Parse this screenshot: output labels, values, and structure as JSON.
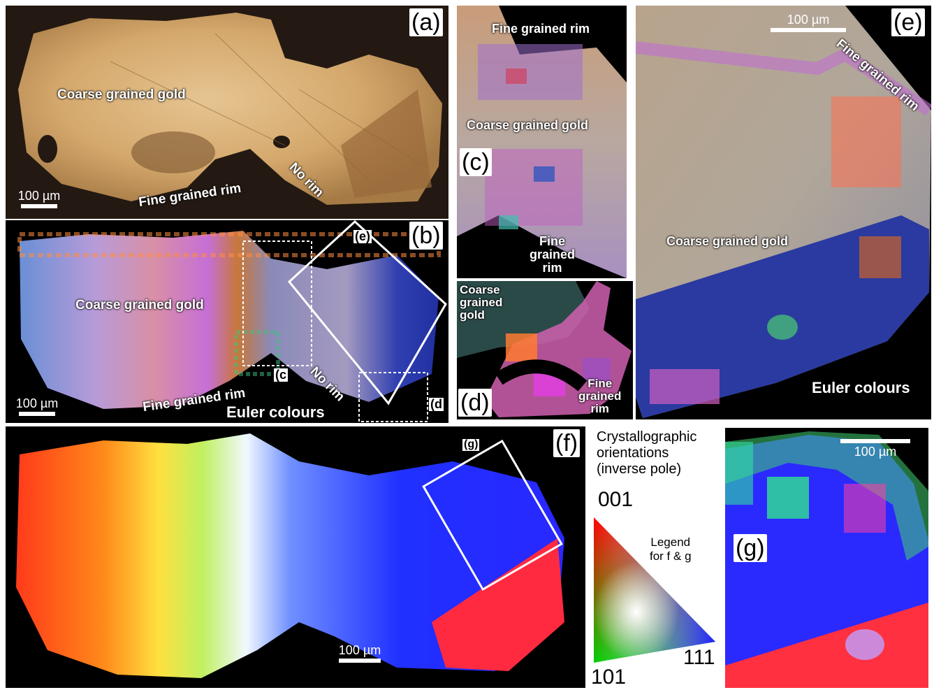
{
  "panels": {
    "a": {
      "tag": "(a)",
      "labels": {
        "coarse": "Coarse  grained gold",
        "rim": "Fine  grained rim",
        "norim": "No rim"
      },
      "scale": "100 µm"
    },
    "b": {
      "tag": "(b)",
      "labels": {
        "coarse": "Coarse  grained gold",
        "rim": "Fine  grained rim",
        "norim": "No rim",
        "euler": "Euler colours",
        "inset_c": "(c",
        "inset_d": "(d",
        "inset_e": "(e)"
      },
      "scale": "100 µm"
    },
    "c": {
      "tag": "(c)",
      "labels": {
        "top": "Fine  grained rim",
        "middle": "Coarse  grained gold",
        "bottom": "Fine\ngrained\nrim"
      }
    },
    "d": {
      "tag": "(d)",
      "labels": {
        "coarse": "Coarse\ngrained\ngold",
        "rim": "Fine\ngrained\nrim"
      }
    },
    "e": {
      "tag": "(e)",
      "labels": {
        "rim": "Fine  grained rim",
        "coarse": "Coarse  grained gold",
        "euler": "Euler colours"
      },
      "scale": "100 µm"
    },
    "f": {
      "tag": "(f)",
      "inset_g": "(g)",
      "scale": "100 µm"
    },
    "g": {
      "tag": "(g)",
      "scale": "100 µm"
    }
  },
  "legend": {
    "title": "Crystallographic\norientations\n(inverse pole)",
    "note": "Legend\nfor f & g",
    "v001": "001",
    "v101": "101",
    "v111": "111",
    "colors": {
      "001": "#ff0000",
      "101": "#00cc00",
      "111": "#2020ff"
    }
  }
}
